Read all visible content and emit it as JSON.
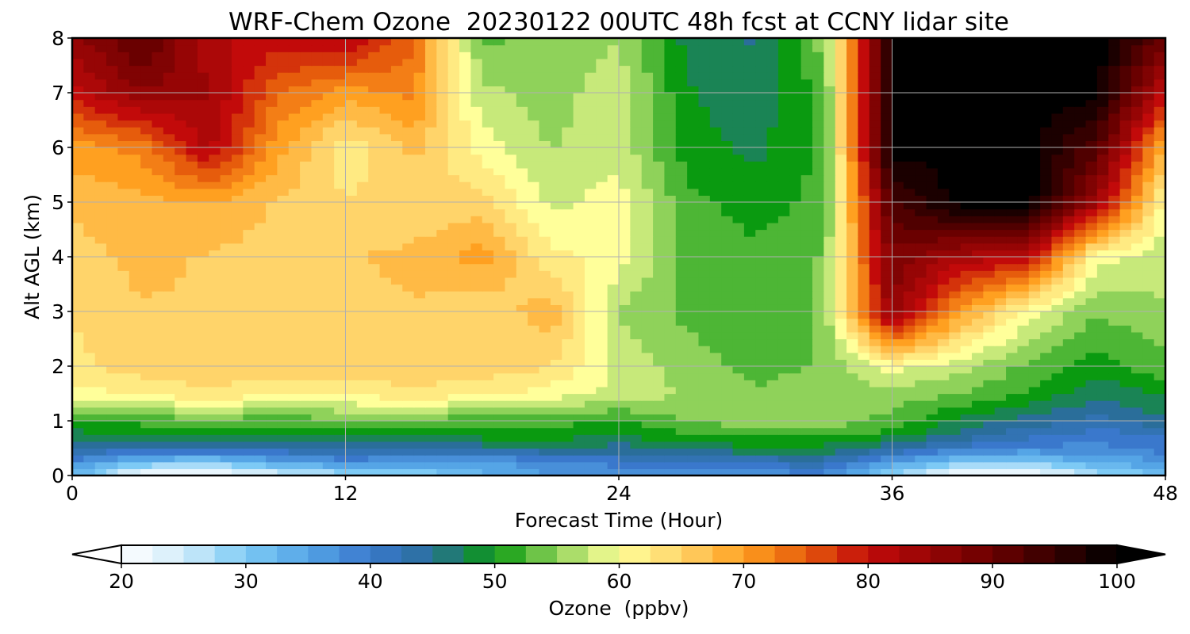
{
  "chart_data": {
    "type": "heatmap",
    "title": "WRF-Chem Ozone  20230122 00UTC 48h fcst at CCNY lidar site",
    "xlabel": "Forecast Time (Hour)",
    "ylabel": "Alt AGL (km)",
    "xlim": [
      0,
      48
    ],
    "ylim": [
      0,
      8
    ],
    "x_ticks": [
      0,
      12,
      24,
      36,
      48
    ],
    "x_tick_labels": [
      "0",
      "12",
      "24",
      "36",
      "48"
    ],
    "y_ticks": [
      0,
      1,
      2,
      3,
      4,
      5,
      6,
      7,
      8
    ],
    "y_tick_labels": [
      "0",
      "1",
      "2",
      "3",
      "4",
      "5",
      "6",
      "7",
      "8"
    ],
    "grid": true,
    "x": [
      0,
      3,
      6,
      9,
      12,
      15,
      18,
      21,
      24,
      27,
      30,
      33,
      36,
      39,
      42,
      45,
      48
    ],
    "y": [
      0,
      0.25,
      0.5,
      0.75,
      1,
      1.5,
      2,
      3,
      4,
      5,
      6,
      7,
      8
    ],
    "z": [
      [
        33,
        20,
        20,
        23,
        27,
        28,
        33,
        36,
        36,
        36,
        37,
        38,
        28,
        20,
        20,
        27,
        32
      ],
      [
        38,
        32,
        30,
        35,
        37,
        36,
        35,
        38,
        40,
        41,
        42,
        43,
        36,
        30,
        30,
        34,
        36
      ],
      [
        44,
        42,
        42,
        43,
        45,
        44,
        45,
        46,
        45,
        47,
        48,
        48,
        44,
        40,
        38,
        38,
        40
      ],
      [
        48,
        49,
        50,
        50,
        50,
        50,
        50,
        50,
        49,
        51,
        52,
        52,
        50,
        46,
        42,
        40,
        41
      ],
      [
        50,
        52,
        53,
        52,
        53,
        53,
        52,
        52,
        51,
        54,
        55,
        55,
        53,
        48,
        45,
        43,
        46
      ],
      [
        60,
        62,
        63,
        62,
        62,
        63,
        62,
        60,
        58,
        56,
        54,
        55,
        55,
        54,
        51,
        47,
        49
      ],
      [
        63,
        65,
        66,
        65,
        65,
        66,
        65,
        64,
        58,
        55,
        53,
        54,
        60,
        57,
        53,
        50,
        53
      ],
      [
        64,
        66,
        66,
        66,
        65,
        66,
        64,
        68,
        56,
        53,
        52,
        54,
        86,
        70,
        60,
        54,
        56
      ],
      [
        65,
        67,
        66,
        65,
        66,
        67,
        70,
        62,
        60,
        53,
        52,
        54,
        88,
        83,
        80,
        60,
        57
      ],
      [
        67,
        68,
        69,
        66,
        64,
        64,
        65,
        58,
        60,
        52,
        50,
        52,
        93,
        100,
        100,
        84,
        60
      ],
      [
        70,
        72,
        82,
        70,
        62,
        67,
        60,
        56,
        58,
        50,
        48,
        52,
        100,
        100,
        100,
        92,
        68
      ],
      [
        80,
        86,
        84,
        74,
        70,
        72,
        57,
        55,
        58,
        49,
        47,
        52,
        100,
        100,
        100,
        100,
        80
      ],
      [
        85,
        92,
        82,
        80,
        82,
        74,
        53,
        55,
        56,
        48,
        46,
        55,
        100,
        100,
        100,
        100,
        90
      ]
    ],
    "colorbar": {
      "label": "Ozone  (ppbv)",
      "min": 20,
      "max": 100,
      "ticks": [
        20,
        30,
        40,
        50,
        60,
        70,
        80,
        90,
        100
      ],
      "tick_labels": [
        "20",
        "30",
        "40",
        "50",
        "60",
        "70",
        "80",
        "90",
        "100"
      ],
      "extend": "both",
      "stops": [
        {
          "v": 20,
          "c": "#ffffff"
        },
        {
          "v": 25,
          "c": "#d2ecfa"
        },
        {
          "v": 30,
          "c": "#7dcaf5"
        },
        {
          "v": 35,
          "c": "#55a5e6"
        },
        {
          "v": 40,
          "c": "#3a78cc"
        },
        {
          "v": 45,
          "c": "#2a6e9a"
        },
        {
          "v": 50,
          "c": "#0a9a10"
        },
        {
          "v": 55,
          "c": "#8fd25a"
        },
        {
          "v": 60,
          "c": "#ffff9a"
        },
        {
          "v": 65,
          "c": "#ffd46a"
        },
        {
          "v": 70,
          "c": "#ffa020"
        },
        {
          "v": 75,
          "c": "#e65c0c"
        },
        {
          "v": 80,
          "c": "#c20a0a"
        },
        {
          "v": 90,
          "c": "#6a0000"
        },
        {
          "v": 100,
          "c": "#000000"
        }
      ]
    }
  }
}
